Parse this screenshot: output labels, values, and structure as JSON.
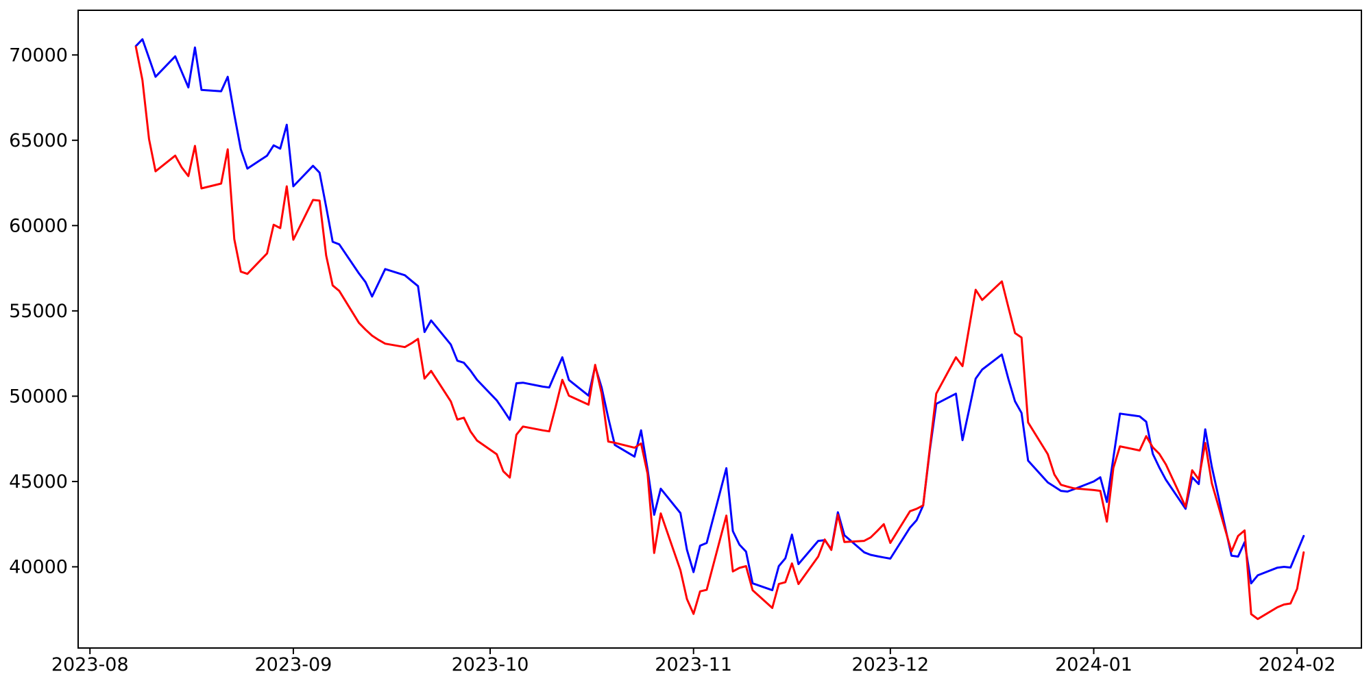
{
  "chart_data": {
    "type": "line",
    "title": "",
    "xlabel": "",
    "ylabel": "",
    "legend_position": "none",
    "grid": false,
    "background_color": "#ffffff",
    "axis_color": "#000000",
    "x_tick_labels": [
      "2023-08",
      "2023-09",
      "2023-10",
      "2023-11",
      "2023-12",
      "2024-01",
      "2024-02"
    ],
    "x_tick_dates": [
      "2023-08-01",
      "2023-09-01",
      "2023-10-01",
      "2023-11-01",
      "2023-12-01",
      "2024-01-01",
      "2024-02-01"
    ],
    "y_tick_labels": [
      "40000",
      "45000",
      "50000",
      "55000",
      "60000",
      "65000",
      "70000"
    ],
    "y_ticks": [
      40000,
      45000,
      50000,
      55000,
      60000,
      65000,
      70000
    ],
    "ylim": [
      35241,
      72619
    ],
    "xlim_days_from_aug1": [
      -1.8,
      193.8
    ],
    "x_dates": [
      "2023-08-08",
      "2023-08-09",
      "2023-08-10",
      "2023-08-11",
      "2023-08-14",
      "2023-08-15",
      "2023-08-16",
      "2023-08-17",
      "2023-08-18",
      "2023-08-21",
      "2023-08-22",
      "2023-08-23",
      "2023-08-24",
      "2023-08-25",
      "2023-08-28",
      "2023-08-29",
      "2023-08-30",
      "2023-08-31",
      "2023-09-01",
      "2023-09-04",
      "2023-09-05",
      "2023-09-06",
      "2023-09-07",
      "2023-09-08",
      "2023-09-11",
      "2023-09-12",
      "2023-09-13",
      "2023-09-14",
      "2023-09-15",
      "2023-09-18",
      "2023-09-19",
      "2023-09-20",
      "2023-09-21",
      "2023-09-22",
      "2023-09-25",
      "2023-09-26",
      "2023-09-27",
      "2023-09-28",
      "2023-09-29",
      "2023-10-02",
      "2023-10-03",
      "2023-10-04",
      "2023-10-05",
      "2023-10-06",
      "2023-10-09",
      "2023-10-10",
      "2023-10-11",
      "2023-10-12",
      "2023-10-13",
      "2023-10-16",
      "2023-10-17",
      "2023-10-18",
      "2023-10-19",
      "2023-10-20",
      "2023-10-23",
      "2023-10-24",
      "2023-10-25",
      "2023-10-26",
      "2023-10-27",
      "2023-10-30",
      "2023-10-31",
      "2023-11-01",
      "2023-11-02",
      "2023-11-03",
      "2023-11-06",
      "2023-11-07",
      "2023-11-08",
      "2023-11-09",
      "2023-11-10",
      "2023-11-13",
      "2023-11-14",
      "2023-11-15",
      "2023-11-16",
      "2023-11-17",
      "2023-11-20",
      "2023-11-21",
      "2023-11-22",
      "2023-11-23",
      "2023-11-24",
      "2023-11-27",
      "2023-11-28",
      "2023-11-29",
      "2023-11-30",
      "2023-12-01",
      "2023-12-04",
      "2023-12-05",
      "2023-12-06",
      "2023-12-07",
      "2023-12-08",
      "2023-12-11",
      "2023-12-12",
      "2023-12-13",
      "2023-12-14",
      "2023-12-15",
      "2023-12-18",
      "2023-12-19",
      "2023-12-20",
      "2023-12-21",
      "2023-12-22",
      "2023-12-25",
      "2023-12-26",
      "2023-12-27",
      "2023-12-28",
      "2023-12-29",
      "2024-01-01",
      "2024-01-02",
      "2024-01-03",
      "2024-01-04",
      "2024-01-05",
      "2024-01-08",
      "2024-01-09",
      "2024-01-10",
      "2024-01-11",
      "2024-01-12",
      "2024-01-15",
      "2024-01-16",
      "2024-01-17",
      "2024-01-18",
      "2024-01-19",
      "2024-01-22",
      "2024-01-23",
      "2024-01-24",
      "2024-01-25",
      "2024-01-26",
      "2024-01-29",
      "2024-01-30",
      "2024-01-31",
      "2024-02-01",
      "2024-02-02"
    ],
    "series": [
      {
        "name": "blue-line",
        "color": "#0000ff",
        "values": [
          70520,
          70920,
          69820,
          68720,
          69920,
          69000,
          68100,
          70440,
          67950,
          67870,
          68720,
          66500,
          64470,
          63340,
          64100,
          64700,
          64510,
          65910,
          62300,
          63500,
          63100,
          61100,
          59050,
          58900,
          57200,
          56690,
          55840,
          56640,
          57450,
          57090,
          56770,
          56450,
          53760,
          54440,
          53030,
          52080,
          51960,
          51500,
          50960,
          49760,
          49200,
          48620,
          50760,
          50790,
          50560,
          50510,
          51400,
          52280,
          50950,
          50030,
          51760,
          50500,
          48740,
          47140,
          46460,
          48000,
          45700,
          43050,
          44580,
          43150,
          41000,
          39690,
          41240,
          41400,
          45780,
          42090,
          41300,
          40890,
          39030,
          38630,
          40040,
          40500,
          41890,
          40160,
          41520,
          41560,
          41040,
          43200,
          41850,
          40850,
          40700,
          40620,
          40550,
          40480,
          42300,
          42730,
          43600,
          46800,
          49550,
          50150,
          47420,
          49200,
          51030,
          51560,
          52440,
          51000,
          49700,
          49020,
          46220,
          44950,
          44700,
          44450,
          44410,
          44550,
          45000,
          45250,
          43800,
          46400,
          48980,
          48820,
          48500,
          46620,
          45820,
          45100,
          43400,
          45250,
          44850,
          48060,
          45860,
          40650,
          40600,
          41440,
          39030,
          39500,
          39950,
          40000,
          39960,
          40880,
          41810
        ]
      },
      {
        "name": "red-line",
        "color": "#ff0000",
        "values": [
          70480,
          68520,
          65070,
          63180,
          64100,
          63400,
          62900,
          64670,
          62180,
          62460,
          64470,
          59200,
          57300,
          57170,
          58370,
          60050,
          59850,
          62300,
          59170,
          61500,
          61460,
          58250,
          56490,
          56170,
          54300,
          53900,
          53550,
          53300,
          53080,
          52880,
          53100,
          53360,
          51030,
          51480,
          49700,
          48630,
          48740,
          47940,
          47400,
          46600,
          45600,
          45230,
          47740,
          48220,
          48000,
          47940,
          49400,
          50960,
          50030,
          49500,
          51840,
          50150,
          47340,
          47270,
          46980,
          47230,
          45450,
          40810,
          43130,
          39800,
          38110,
          37240,
          38560,
          38650,
          43000,
          39730,
          39940,
          40040,
          38630,
          37590,
          38990,
          39100,
          40200,
          38990,
          40600,
          41600,
          40990,
          43050,
          41450,
          41520,
          41720,
          42100,
          42500,
          41400,
          43260,
          43400,
          43600,
          46900,
          50150,
          52280,
          51760,
          54000,
          56240,
          55640,
          56730,
          55200,
          53700,
          53440,
          48460,
          46600,
          45410,
          44810,
          44700,
          44600,
          44500,
          44450,
          42650,
          45800,
          47060,
          46820,
          47660,
          47000,
          46620,
          46000,
          43520,
          45660,
          45130,
          47260,
          44900,
          40900,
          41810,
          42130,
          37230,
          36940,
          37630,
          37790,
          37850,
          38710,
          40850
        ]
      }
    ]
  }
}
